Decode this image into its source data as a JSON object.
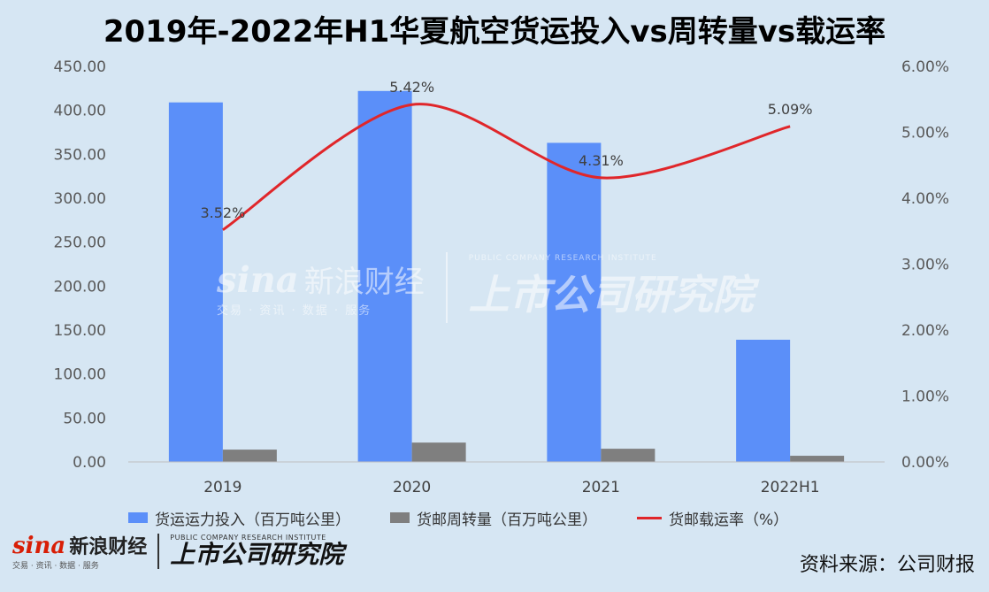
{
  "title": "2019年-2022年H1华夏航空货运投入vs周转量vs载运率",
  "chart_data": {
    "type": "bar+line",
    "categories": [
      "2019",
      "2020",
      "2021",
      "2022H1"
    ],
    "series": [
      {
        "name": "货运运力投入（百万吨公里）",
        "type": "bar",
        "axis": "left",
        "color": "#5b8ff9",
        "values": [
          409,
          422,
          363,
          139
        ]
      },
      {
        "name": "货邮周转量（百万吨公里）",
        "type": "bar",
        "axis": "left",
        "color": "#7f7f7f",
        "values": [
          14,
          22,
          15,
          7
        ]
      },
      {
        "name": "货邮载运率（%）",
        "type": "line",
        "axis": "right",
        "color": "#e0262a",
        "values": [
          3.52,
          5.42,
          4.31,
          5.09
        ],
        "labels": [
          "3.52%",
          "5.42%",
          "4.31%",
          "5.09%"
        ]
      }
    ],
    "y_left": {
      "min": 0,
      "max": 450,
      "step": 50,
      "ticks": [
        "0.00",
        "50.00",
        "100.00",
        "150.00",
        "200.00",
        "250.00",
        "300.00",
        "350.00",
        "400.00",
        "450.00"
      ]
    },
    "y_right": {
      "min": 0,
      "max": 6,
      "step": 1,
      "ticks": [
        "0.00%",
        "1.00%",
        "2.00%",
        "3.00%",
        "4.00%",
        "5.00%",
        "6.00%"
      ]
    },
    "grid": false,
    "legend": "bottom"
  },
  "watermark": {
    "brand": "sina",
    "brand_cn": "新浪财经",
    "brand_sub": "交易 · 资讯 · 数据 · 服务",
    "inst_en": "PUBLIC COMPANY RESEARCH INSTITUTE",
    "inst_cn": "上市公司研究院"
  },
  "footer": {
    "brand": "sina",
    "brand_cn": "新浪财经",
    "brand_sub": "交易 · 资讯 · 数据 · 服务",
    "inst_en": "PUBLIC COMPANY RESEARCH INSTITUTE",
    "inst_cn": "上市公司研究院",
    "source": "资料来源：公司财报"
  }
}
